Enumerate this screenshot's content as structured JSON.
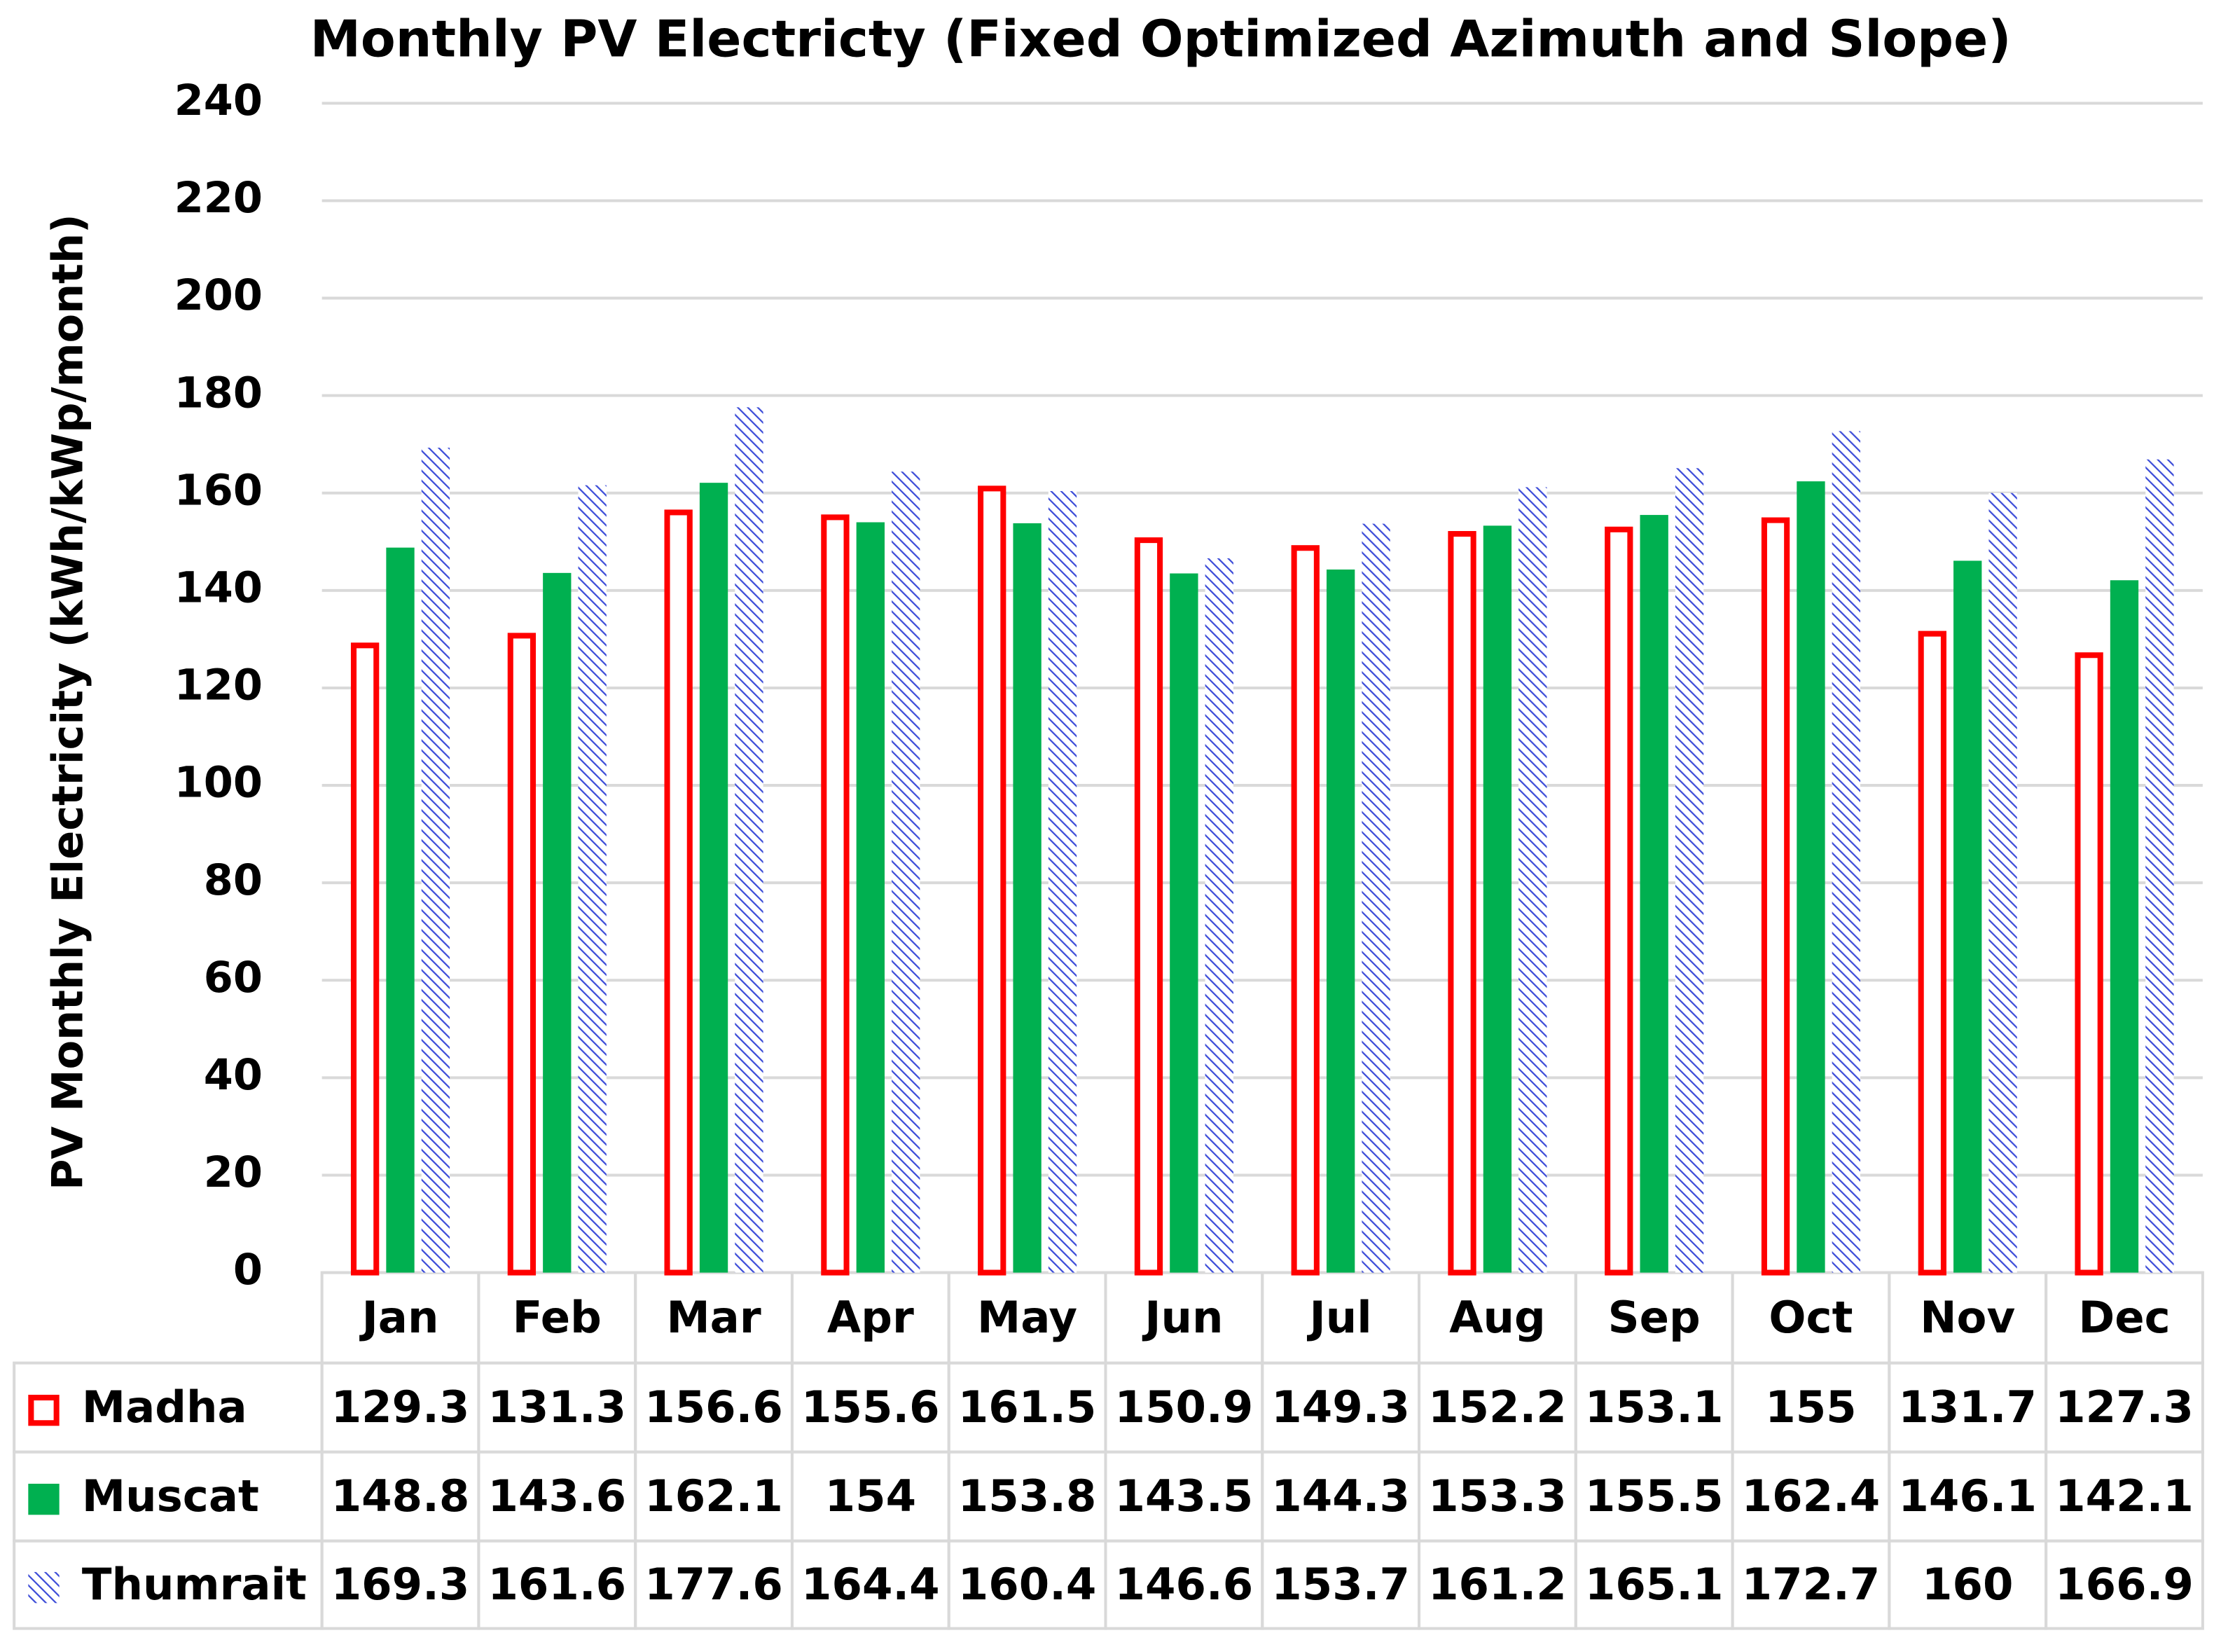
{
  "chart_data": {
    "type": "bar",
    "title": "Monthly PV Electricty (Fixed Optimized Azimuth and Slope)",
    "y_label": "PV Monthly Electricity (kWh/kWp/month)",
    "categories": [
      "Jan",
      "Feb",
      "Mar",
      "Apr",
      "May",
      "Jun",
      "Jul",
      "Aug",
      "Sep",
      "Oct",
      "Nov",
      "Dec"
    ],
    "series": [
      {
        "name": "Madha",
        "color": "#ff0000",
        "style": "outline",
        "values": [
          129.3,
          131.3,
          156.6,
          155.6,
          161.5,
          150.9,
          149.3,
          152.2,
          153.1,
          155,
          131.7,
          127.3
        ]
      },
      {
        "name": "Muscat",
        "color": "#00b050",
        "style": "solid",
        "values": [
          148.8,
          143.6,
          162.1,
          154,
          153.8,
          143.5,
          144.3,
          153.3,
          155.5,
          162.4,
          146.1,
          142.1
        ]
      },
      {
        "name": "Thumrait",
        "color": "#3b4bd8",
        "style": "hatch",
        "values": [
          169.3,
          161.6,
          177.6,
          164.4,
          160.4,
          146.6,
          153.7,
          161.2,
          165.1,
          172.7,
          160,
          166.9
        ]
      }
    ],
    "ylim": [
      0,
      240
    ],
    "yticks": [
      0,
      20,
      40,
      60,
      80,
      100,
      120,
      140,
      160,
      180,
      200,
      220,
      240
    ],
    "grid": true,
    "data_table": true
  }
}
